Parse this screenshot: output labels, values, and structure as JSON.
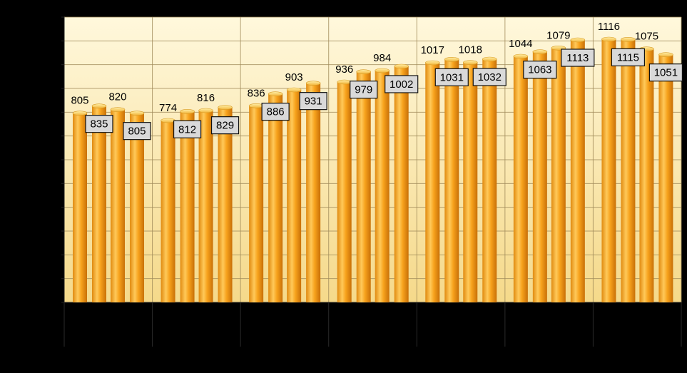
{
  "chart_data": {
    "type": "bar",
    "title": "",
    "xlabel": "",
    "ylabel": "",
    "ylim": [
      0,
      1200
    ],
    "grid": {
      "horizontal": true,
      "vertical_group_separators": true
    },
    "legend": "none",
    "colors": {
      "background": "#000000",
      "plot_fill_top": "#fff7d6",
      "plot_fill_bottom": "#f6dd92",
      "bar_light": "#ffd36a",
      "bar_mid": "#f7a21c",
      "bar_dark": "#c9760b",
      "bar_cap": "#ffe48a",
      "label_box": "#d9d9d9",
      "gridline": "#a08b5a"
    },
    "categories": [
      "",
      "",
      "",
      "",
      "",
      "",
      ""
    ],
    "values": [
      805,
      835,
      820,
      805,
      774,
      812,
      816,
      829,
      836,
      886,
      903,
      931,
      936,
      979,
      984,
      1002,
      1017,
      1031,
      1018,
      1032,
      1044,
      1063,
      1079,
      1113,
      1116,
      1115,
      1075,
      1051
    ],
    "labels": [
      "805",
      "835",
      "820",
      "805",
      "774",
      "812",
      "816",
      "829",
      "836",
      "886",
      "903",
      "931",
      "936",
      "979",
      "984",
      "1002",
      "1017",
      "1031",
      "1018",
      "1032",
      "1044",
      "1063",
      "1079",
      "1113",
      "1116",
      "1115",
      "1075",
      "1051"
    ],
    "boxed_labels": [
      false,
      true,
      false,
      true,
      false,
      true,
      false,
      true,
      false,
      true,
      false,
      true,
      false,
      true,
      false,
      true,
      false,
      true,
      false,
      true,
      false,
      true,
      false,
      true,
      false,
      true,
      false,
      true
    ]
  }
}
